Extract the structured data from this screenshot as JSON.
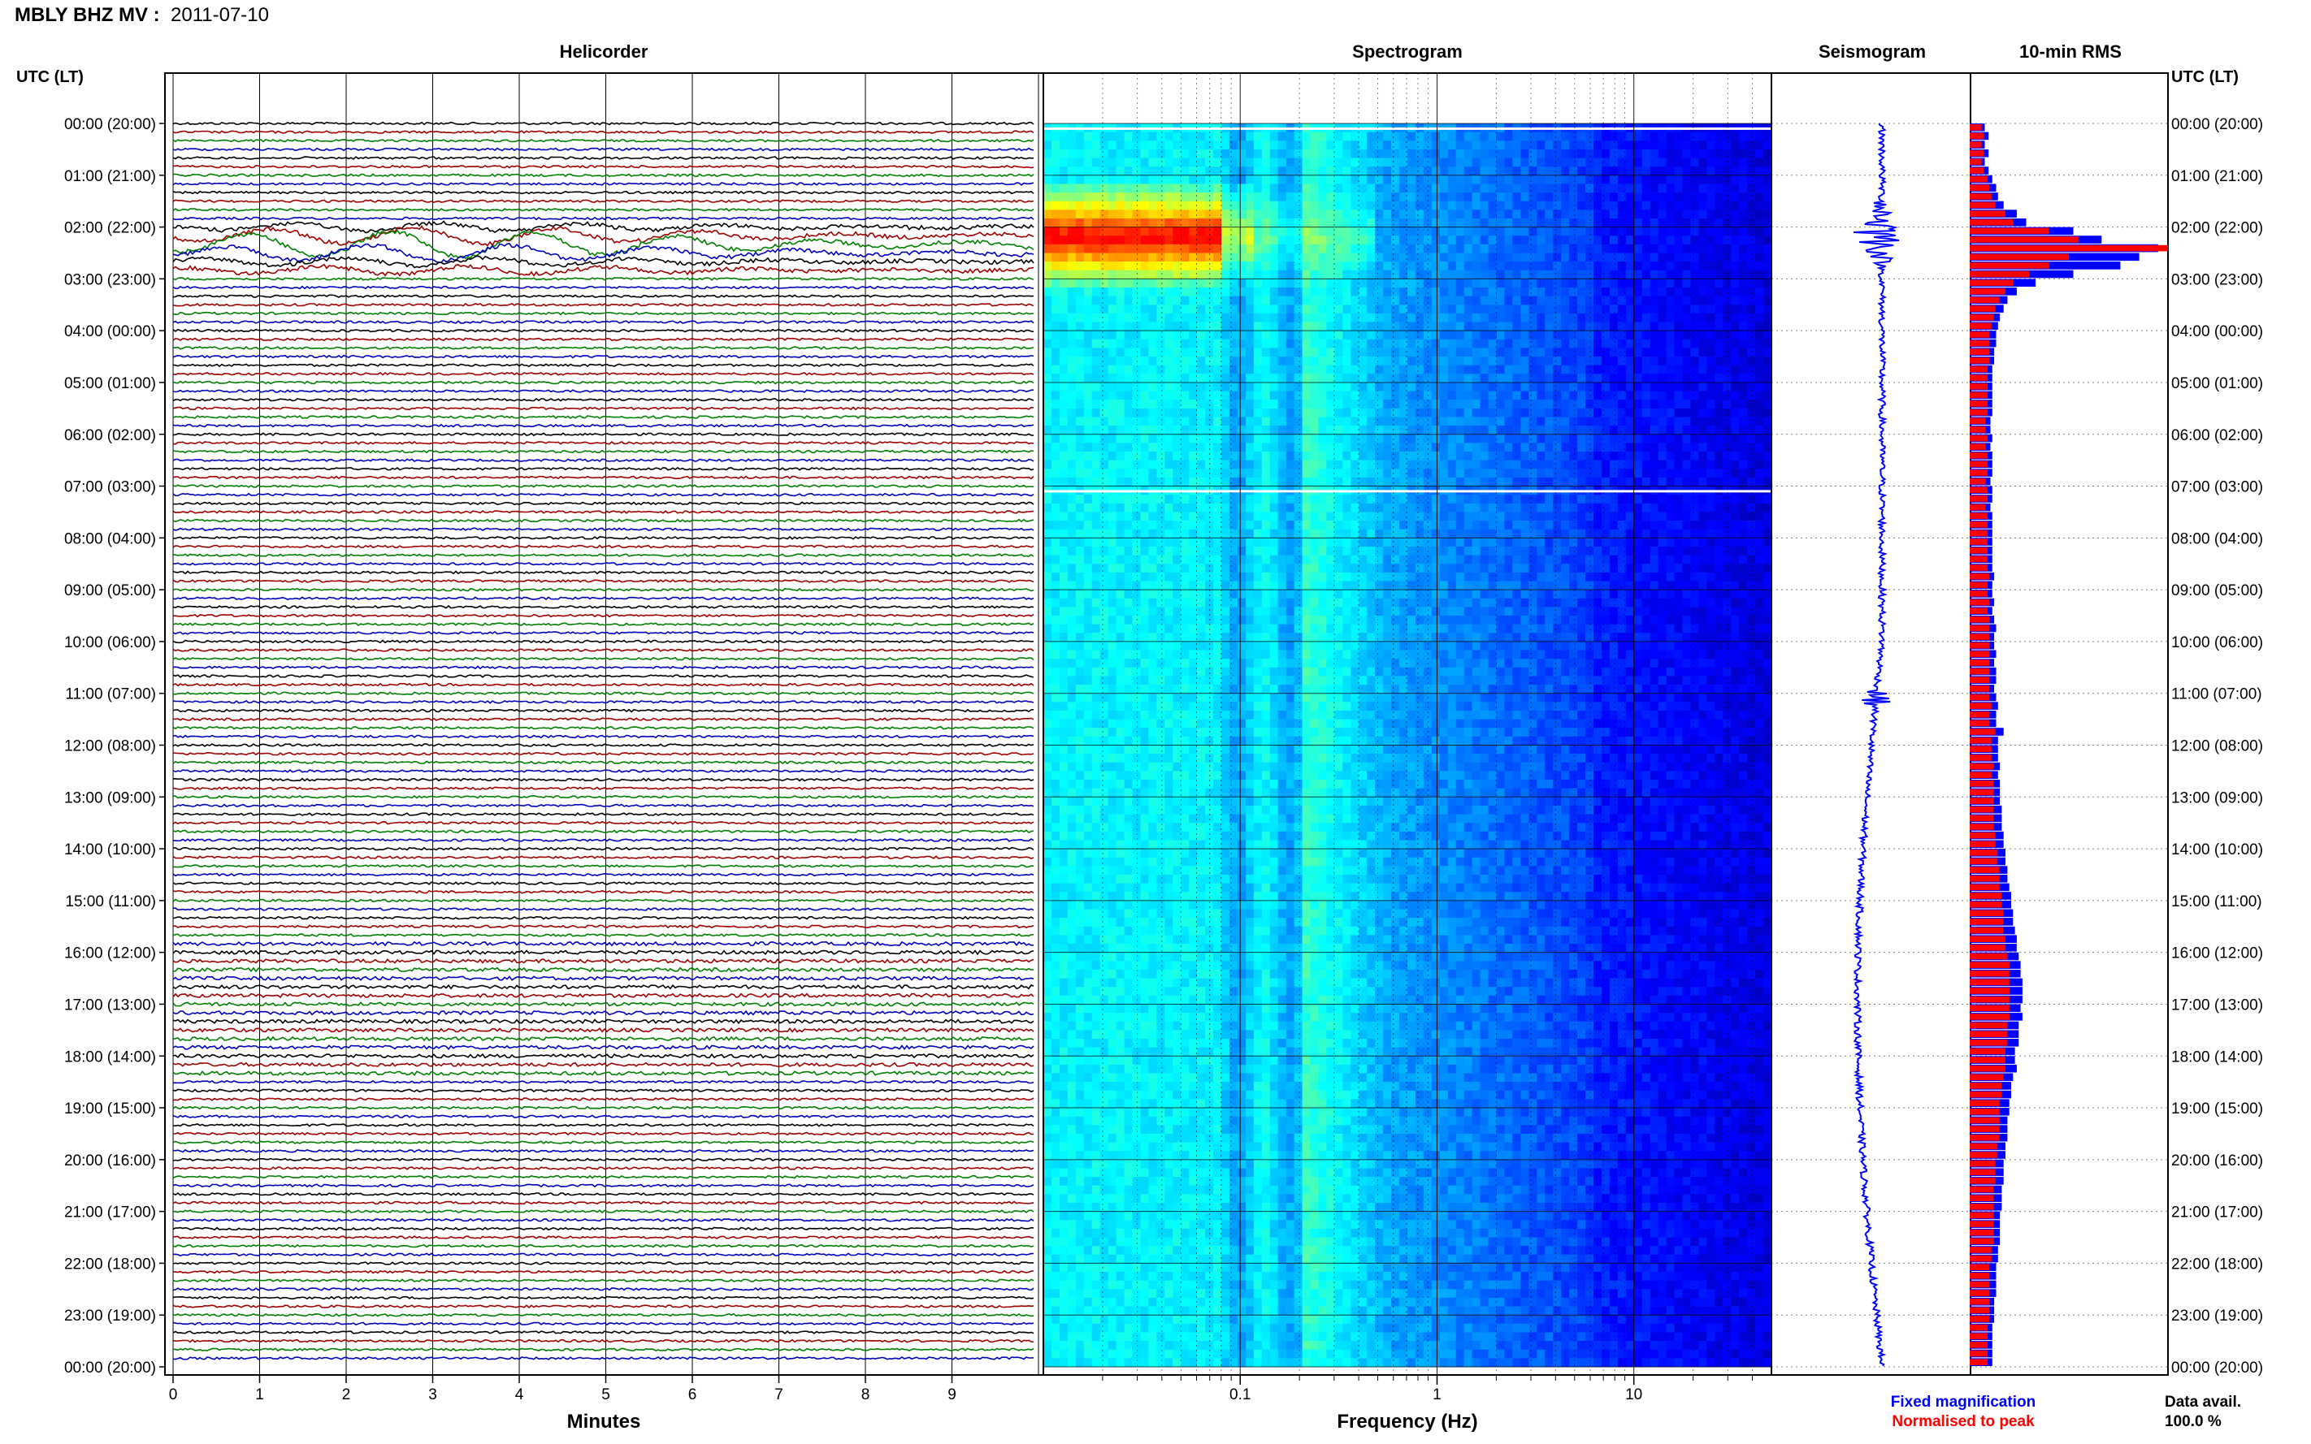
{
  "header": {
    "station_label": "MBLY BHZ MV :",
    "date": "2011-07-10"
  },
  "colors": {
    "trace_cycle": [
      "#000000",
      "#a00000",
      "#008000",
      "#0000c0"
    ],
    "fixed_magnification": "#0000ff",
    "normalised_to_peak": "#ff0000",
    "spectrogram_scale": [
      "#00007f",
      "#0000ff",
      "#0080ff",
      "#00ffff",
      "#80ff80",
      "#ffff00",
      "#ff8000",
      "#ff0000"
    ]
  },
  "panels": {
    "helicorder": "Helicorder",
    "spectrogram": "Spectrogram",
    "seismogram": "Seismogram",
    "rms": "10-min RMS"
  },
  "time_axis": {
    "left_title": "UTC (LT)",
    "right_title": "UTC (LT)",
    "labels": [
      "00:00 (20:00)",
      "01:00 (21:00)",
      "02:00 (22:00)",
      "03:00 (23:00)",
      "04:00 (00:00)",
      "05:00 (01:00)",
      "06:00 (02:00)",
      "07:00 (03:00)",
      "08:00 (04:00)",
      "09:00 (05:00)",
      "10:00 (06:00)",
      "11:00 (07:00)",
      "12:00 (08:00)",
      "13:00 (09:00)",
      "14:00 (10:00)",
      "15:00 (11:00)",
      "16:00 (12:00)",
      "17:00 (13:00)",
      "18:00 (14:00)",
      "19:00 (15:00)",
      "20:00 (16:00)",
      "21:00 (17:00)",
      "22:00 (18:00)",
      "23:00 (19:00)",
      "00:00 (20:00)"
    ]
  },
  "minutes_axis": {
    "title": "Minutes",
    "ticks": [
      "0",
      "1",
      "2",
      "3",
      "4",
      "5",
      "6",
      "7",
      "8",
      "9"
    ]
  },
  "frequency_axis": {
    "title": "Frequency (Hz)",
    "ticks": [
      "0.1",
      "1",
      "10"
    ]
  },
  "legend": {
    "fixed": "Fixed magnification",
    "normalised": "Normalised to peak"
  },
  "data_availability": {
    "label": "Data avail.",
    "value": "100.0 %"
  },
  "chart_data": {
    "type": "heatmap",
    "title": "MBLY BHZ MV : 2011-07-10",
    "helicorder": {
      "rows": 144,
      "minutes_per_row": 10,
      "xlim": [
        0,
        10
      ],
      "event_rows": [
        12,
        13,
        14,
        15,
        16,
        17
      ],
      "event_peak_row": 14
    },
    "spectrogram": {
      "xscale": "log",
      "xlim": [
        0.01,
        50
      ],
      "hours": [
        0,
        24
      ],
      "peak_frequency_hz": 0.05,
      "peak_time_utc": "02:00"
    },
    "rms_10min": {
      "xlabel": "",
      "series": [
        {
          "name": "Fixed magnification",
          "values": [
            0.08,
            0.1,
            0.08,
            0.1,
            0.08,
            0.1,
            0.12,
            0.14,
            0.15,
            0.18,
            0.25,
            0.3,
            0.55,
            0.7,
            1.0,
            0.9,
            0.8,
            0.55,
            0.35,
            0.25,
            0.2,
            0.18,
            0.16,
            0.15,
            0.14,
            0.14,
            0.13,
            0.13,
            0.12,
            0.12,
            0.12,
            0.12,
            0.12,
            0.12,
            0.11,
            0.11,
            0.12,
            0.11,
            0.12,
            0.12,
            0.12,
            0.11,
            0.12,
            0.12,
            0.11,
            0.12,
            0.12,
            0.12,
            0.12,
            0.12,
            0.12,
            0.12,
            0.13,
            0.12,
            0.12,
            0.13,
            0.12,
            0.13,
            0.14,
            0.13,
            0.13,
            0.14,
            0.13,
            0.14,
            0.14,
            0.13,
            0.14,
            0.15,
            0.14,
            0.14,
            0.18,
            0.15,
            0.15,
            0.15,
            0.16,
            0.15,
            0.16,
            0.16,
            0.16,
            0.17,
            0.17,
            0.17,
            0.18,
            0.18,
            0.19,
            0.19,
            0.2,
            0.2,
            0.21,
            0.22,
            0.22,
            0.23,
            0.23,
            0.24,
            0.25,
            0.25,
            0.26,
            0.27,
            0.27,
            0.28,
            0.28,
            0.28,
            0.27,
            0.28,
            0.26,
            0.26,
            0.26,
            0.24,
            0.24,
            0.25,
            0.23,
            0.22,
            0.22,
            0.21,
            0.21,
            0.2,
            0.2,
            0.2,
            0.19,
            0.19,
            0.18,
            0.18,
            0.18,
            0.17,
            0.17,
            0.17,
            0.16,
            0.16,
            0.16,
            0.16,
            0.15,
            0.15,
            0.14,
            0.14,
            0.14,
            0.14,
            0.13,
            0.13,
            0.13,
            0.12,
            0.12,
            0.12,
            0.12,
            0.12
          ]
        },
        {
          "name": "Normalised to peak",
          "values": [
            0.06,
            0.07,
            0.06,
            0.07,
            0.06,
            0.07,
            0.09,
            0.1,
            0.11,
            0.13,
            0.18,
            0.22,
            0.4,
            0.55,
            1.0,
            0.5,
            0.4,
            0.3,
            0.22,
            0.18,
            0.15,
            0.13,
            0.12,
            0.11,
            0.1,
            0.1,
            0.1,
            0.1,
            0.09,
            0.09,
            0.09,
            0.09,
            0.09,
            0.09,
            0.08,
            0.08,
            0.09,
            0.08,
            0.09,
            0.09,
            0.09,
            0.08,
            0.09,
            0.09,
            0.08,
            0.09,
            0.09,
            0.09,
            0.09,
            0.09,
            0.09,
            0.09,
            0.1,
            0.09,
            0.09,
            0.1,
            0.09,
            0.1,
            0.1,
            0.1,
            0.1,
            0.1,
            0.1,
            0.1,
            0.1,
            0.1,
            0.1,
            0.11,
            0.1,
            0.1,
            0.13,
            0.11,
            0.11,
            0.11,
            0.12,
            0.11,
            0.12,
            0.12,
            0.12,
            0.12,
            0.12,
            0.12,
            0.13,
            0.13,
            0.14,
            0.14,
            0.15,
            0.15,
            0.15,
            0.16,
            0.16,
            0.17,
            0.17,
            0.17,
            0.18,
            0.18,
            0.19,
            0.2,
            0.2,
            0.2,
            0.2,
            0.2,
            0.2,
            0.2,
            0.19,
            0.19,
            0.19,
            0.18,
            0.18,
            0.18,
            0.17,
            0.16,
            0.16,
            0.15,
            0.15,
            0.15,
            0.15,
            0.15,
            0.14,
            0.14,
            0.13,
            0.13,
            0.13,
            0.12,
            0.12,
            0.12,
            0.12,
            0.12,
            0.12,
            0.12,
            0.11,
            0.11,
            0.1,
            0.1,
            0.1,
            0.1,
            0.1,
            0.1,
            0.1,
            0.09,
            0.09,
            0.09,
            0.09,
            0.09
          ]
        }
      ]
    }
  }
}
